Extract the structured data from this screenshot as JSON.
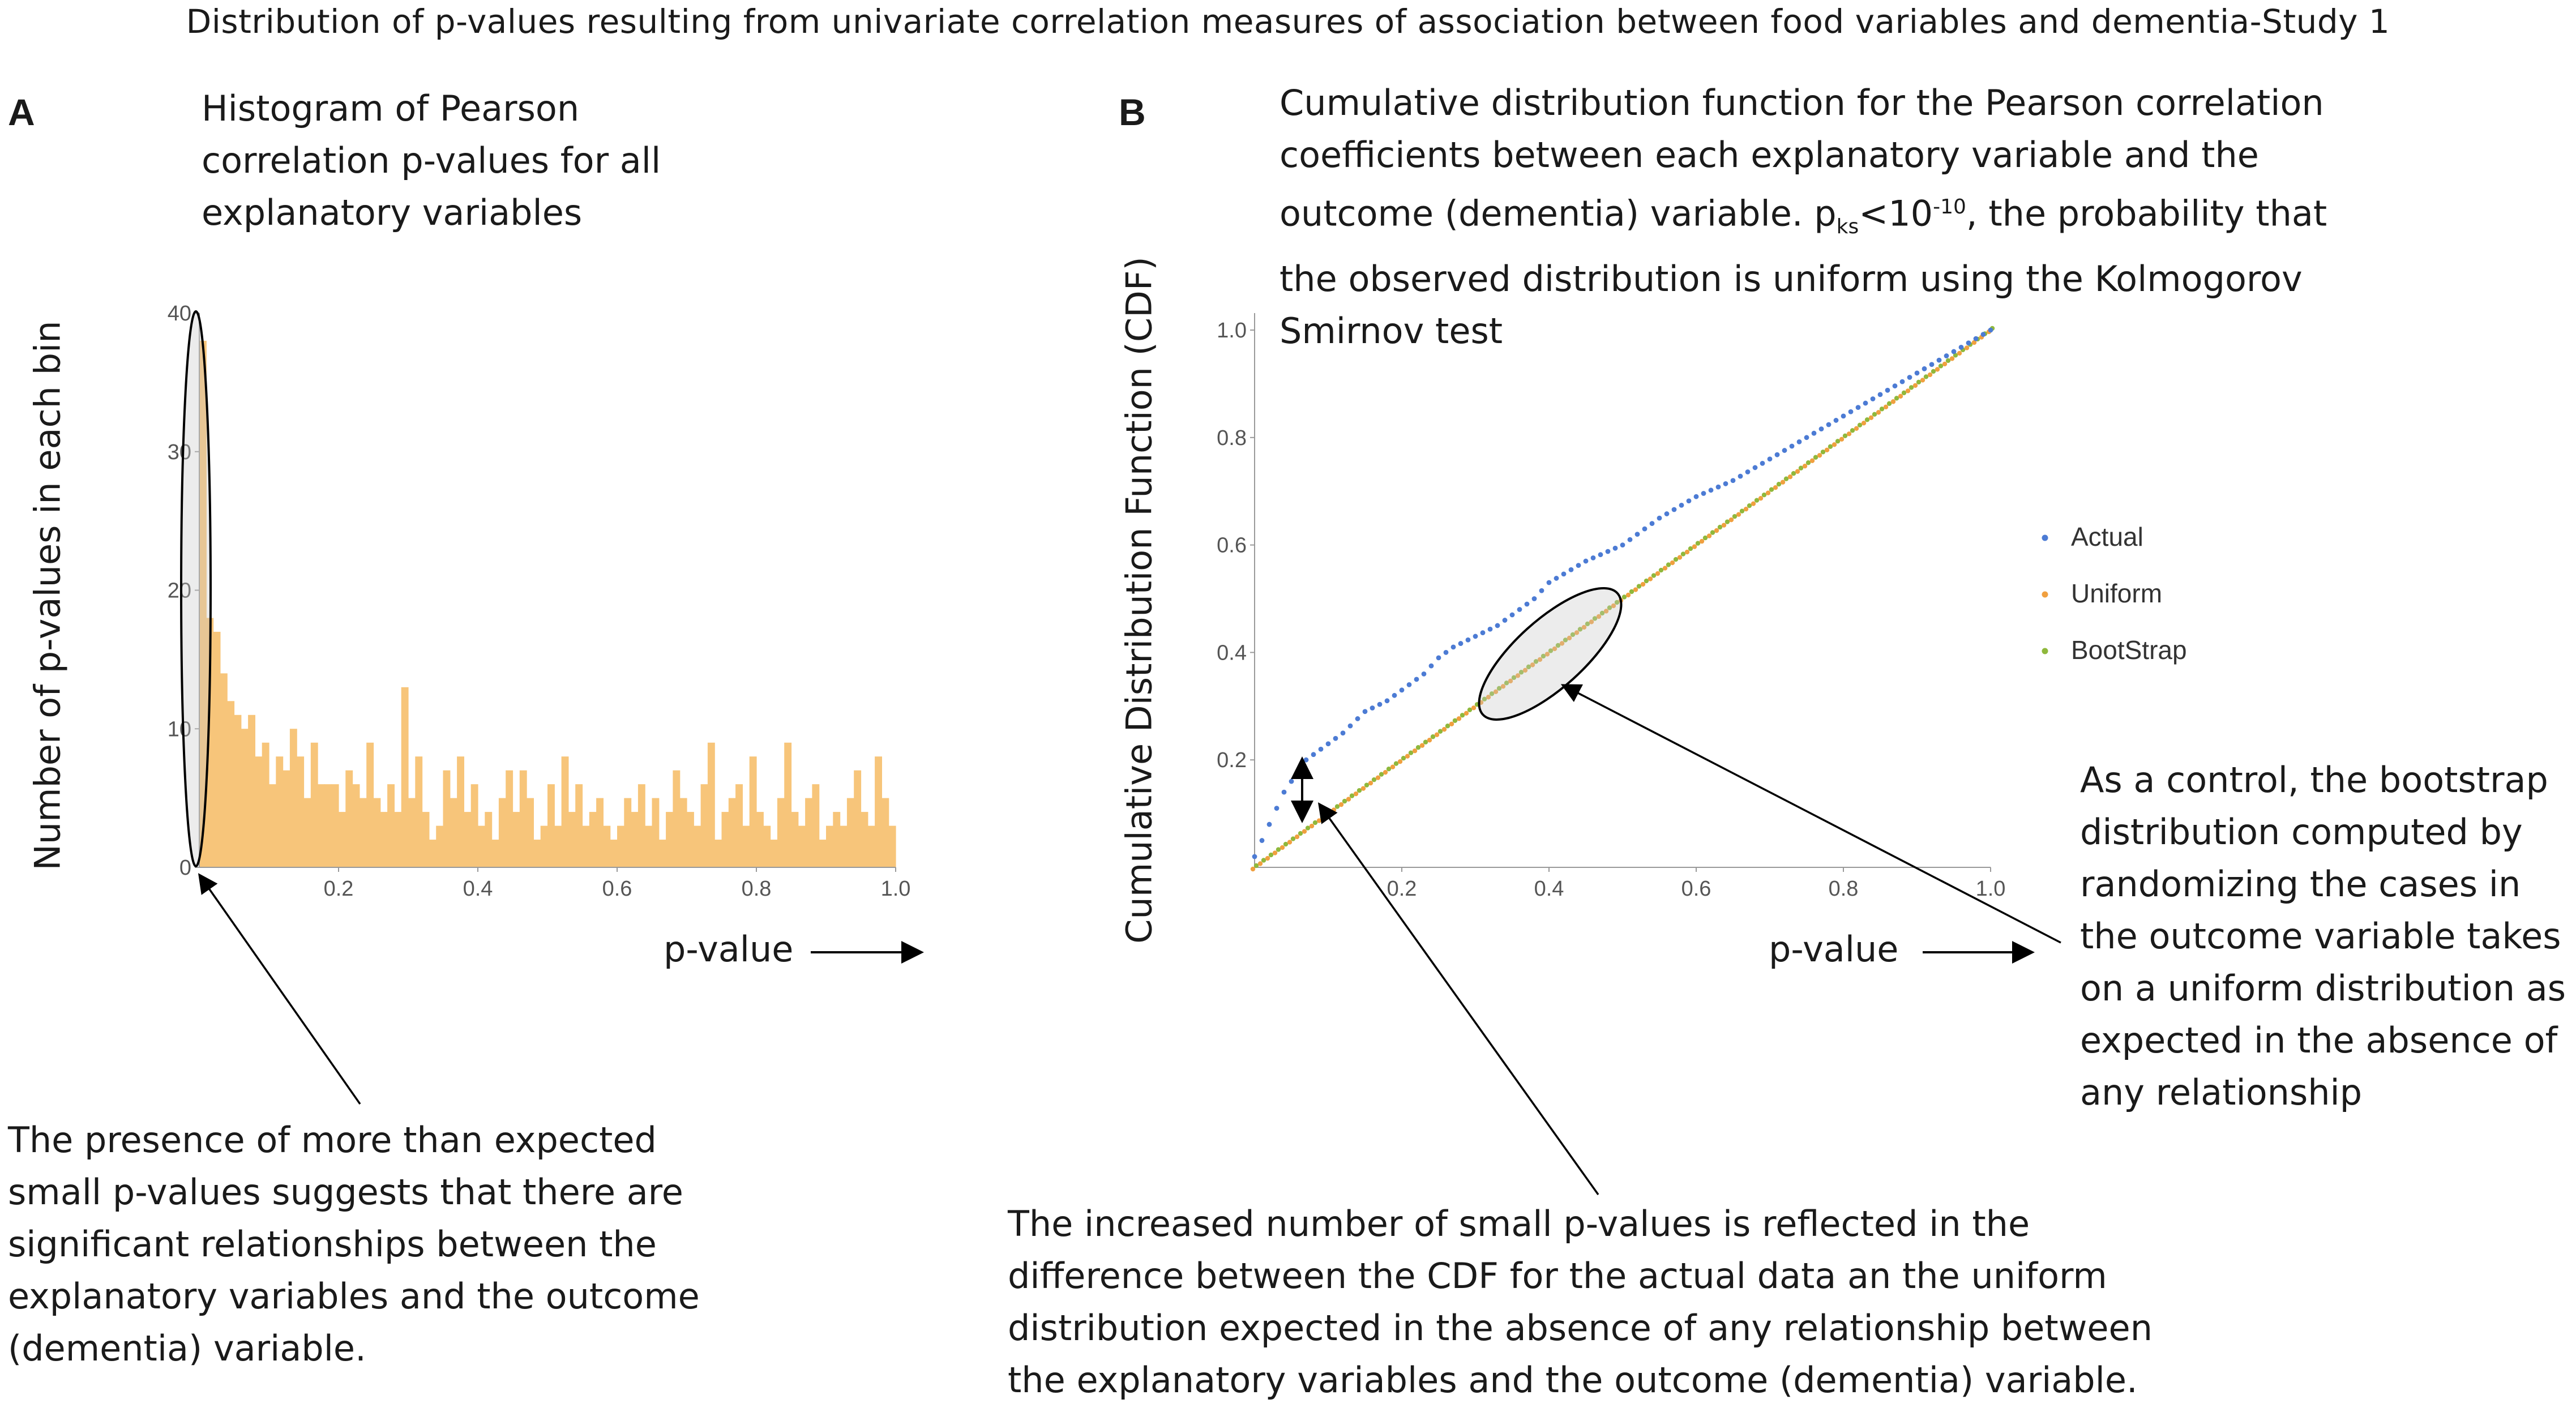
{
  "title": "Distribution of p-values resulting from univariate correlation measures of association between food variables and dementia-Study 1",
  "panel_a": {
    "letter": "A",
    "title_lines": [
      "Histogram of Pearson",
      "correlation p-values for all",
      "explanatory variables"
    ],
    "ylabel": "Number of p-values in each bin",
    "xlabel": "p-value",
    "note_lines": [
      "The presence of more than expected",
      "small p-values suggests that there are",
      "significant relationships between the",
      "explanatory variables and the outcome",
      "(dementia) variable."
    ]
  },
  "panel_b": {
    "letter": "B",
    "title_lines": [
      "Cumulative distribution function for the Pearson correlation",
      "coefficients between each explanatory variable and the"
    ],
    "title_line3_pre": "outcome (dementia) variable.  p",
    "title_sub": "ks",
    "title_mid": "<10",
    "title_sup": "-10",
    "title_line3_post": ", the probability that",
    "title_lines_tail": [
      "the observed distribution is uniform using the Kolmogorov",
      "Smirnov test"
    ],
    "ylabel": "Cumulative Distribution Function (CDF)",
    "xlabel": "p-value",
    "control_note_lines": [
      "As a control, the bootstrap",
      "distribution computed by",
      "randomizing the cases in",
      "the outcome variable takes",
      "on a uniform distribution as",
      "expected in the absence of",
      "any relationship"
    ],
    "bottom_note_lines": [
      "The increased number of small p-values is reflected in the",
      "difference between the CDF for the actual data an the uniform",
      "distribution expected in the absence of any relationship between",
      "the explanatory variables and the outcome (dementia) variable."
    ]
  },
  "chart_data": [
    {
      "type": "bar",
      "title": "Histogram of Pearson correlation p-values for all explanatory variables",
      "xlabel": "p-value",
      "ylabel": "Number of p-values in each bin",
      "xlim": [
        0,
        1
      ],
      "ylim": [
        0,
        40
      ],
      "xticks": [
        0.2,
        0.4,
        0.6,
        0.8,
        1.0
      ],
      "yticks": [
        0,
        10,
        20,
        30,
        40
      ],
      "bin_width": 0.01,
      "values": [
        38,
        18,
        17,
        14,
        12,
        11,
        10,
        11,
        8,
        9,
        6,
        8,
        7,
        10,
        8,
        5,
        9,
        6,
        6,
        6,
        4,
        7,
        6,
        5,
        9,
        5,
        4,
        6,
        4,
        13,
        5,
        8,
        4,
        2,
        3,
        7,
        5,
        8,
        4,
        6,
        3,
        4,
        2,
        5,
        7,
        4,
        7,
        5,
        2,
        3,
        6,
        3,
        8,
        4,
        6,
        3,
        4,
        5,
        3,
        2,
        3,
        5,
        4,
        6,
        3,
        5,
        2,
        4,
        7,
        5,
        4,
        3,
        6,
        9,
        2,
        4,
        5,
        6,
        3,
        8,
        4,
        3,
        2,
        5,
        9,
        4,
        3,
        5,
        6,
        2,
        3,
        4,
        3,
        5,
        7,
        4,
        3,
        8,
        5,
        3
      ]
    },
    {
      "type": "scatter",
      "xlabel": "p-value",
      "ylabel": "Cumulative Distribution Function (CDF)",
      "xlim": [
        0,
        1
      ],
      "ylim": [
        0,
        1
      ],
      "xticks": [
        0.2,
        0.4,
        0.6,
        0.8,
        1.0
      ],
      "yticks": [
        0.2,
        0.4,
        0.6,
        0.8,
        1.0
      ],
      "legend": [
        "Actual",
        "Uniform",
        "BootStrap"
      ],
      "colors": {
        "Actual": "#4c7bd4",
        "Uniform": "#f0a040",
        "BootStrap": "#8fb83c"
      },
      "series": [
        {
          "name": "Actual",
          "points": [
            [
              0.0,
              0.02
            ],
            [
              0.01,
              0.05
            ],
            [
              0.02,
              0.08
            ],
            [
              0.03,
              0.11
            ],
            [
              0.04,
              0.14
            ],
            [
              0.05,
              0.16
            ],
            [
              0.06,
              0.18
            ],
            [
              0.07,
              0.2
            ],
            [
              0.08,
              0.21
            ],
            [
              0.1,
              0.23
            ],
            [
              0.12,
              0.25
            ],
            [
              0.15,
              0.29
            ],
            [
              0.18,
              0.31
            ],
            [
              0.2,
              0.33
            ],
            [
              0.23,
              0.36
            ],
            [
              0.25,
              0.39
            ],
            [
              0.27,
              0.41
            ],
            [
              0.3,
              0.43
            ],
            [
              0.33,
              0.45
            ],
            [
              0.35,
              0.47
            ],
            [
              0.38,
              0.5
            ],
            [
              0.4,
              0.53
            ],
            [
              0.45,
              0.57
            ],
            [
              0.5,
              0.6
            ],
            [
              0.55,
              0.65
            ],
            [
              0.6,
              0.69
            ],
            [
              0.65,
              0.72
            ],
            [
              0.7,
              0.76
            ],
            [
              0.75,
              0.8
            ],
            [
              0.8,
              0.84
            ],
            [
              0.85,
              0.88
            ],
            [
              0.9,
              0.92
            ],
            [
              0.95,
              0.96
            ],
            [
              1.0,
              1.0
            ]
          ]
        },
        {
          "name": "Uniform",
          "x": [
            0,
            1
          ],
          "y": [
            0,
            1
          ]
        },
        {
          "name": "BootStrap",
          "x": [
            0,
            1
          ],
          "y": [
            0,
            1
          ]
        }
      ]
    }
  ]
}
